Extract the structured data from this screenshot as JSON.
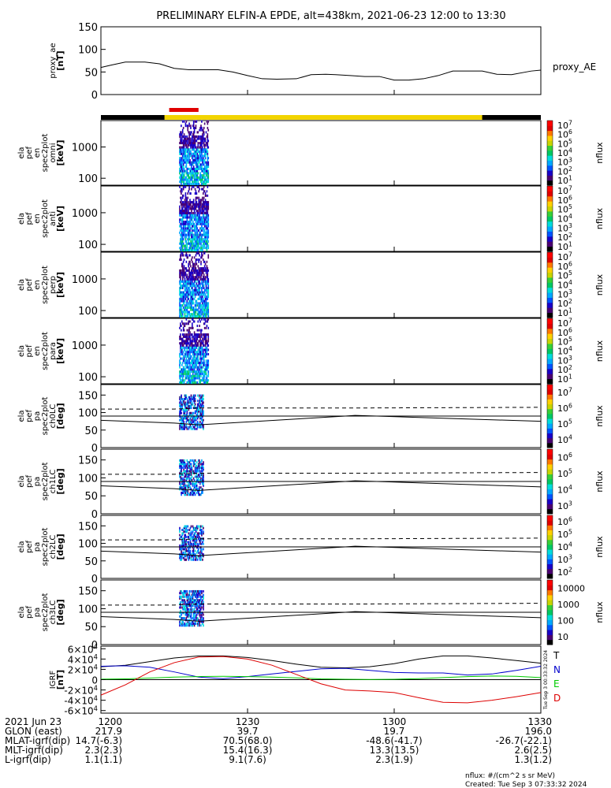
{
  "title": "PRELIMINARY ELFIN-A EPDE, alt=438km, 2021-06-23 12:00 to 13:30",
  "time_range": {
    "start": "12:00",
    "end": "13:30"
  },
  "science_bar": {
    "color": "#e00000",
    "start_min": 13,
    "end_min": 19
  },
  "status_bar": {
    "colors": [
      "#000000",
      "#f2d400"
    ],
    "black_left_end_min": 13,
    "black_right_start_min": 78
  },
  "chart_data": [
    {
      "type": "line",
      "ylabel": "proxy_ae\n[nT]",
      "ylim": [
        0,
        150
      ],
      "yticks": [
        "0",
        "50",
        "100",
        "150"
      ],
      "legend": "proxy_AE",
      "series": [
        {
          "name": "proxy_AE",
          "x_min": [
            0,
            2,
            5,
            9,
            12,
            15,
            18,
            21,
            24,
            27,
            30,
            33,
            36,
            40,
            43,
            46,
            48,
            51,
            54,
            57,
            60,
            63,
            66,
            69,
            72,
            75,
            78,
            81,
            84,
            88,
            90
          ],
          "values": [
            60,
            65,
            72,
            72,
            68,
            58,
            55,
            55,
            55,
            50,
            42,
            35,
            34,
            35,
            44,
            45,
            44,
            42,
            40,
            40,
            32,
            32,
            35,
            42,
            52,
            52,
            52,
            45,
            44,
            52,
            54
          ]
        }
      ]
    },
    {
      "type": "heatmap",
      "ylabel": "ela\npef\nen\nspec2plot\nomni\n[keV]",
      "yscale": "log",
      "ylim": [
        60,
        7000
      ],
      "yticks": [
        "100",
        "1000"
      ],
      "zlabel": "nflux",
      "zticks": [
        "10^1",
        "10^2",
        "10^3",
        "10^4",
        "10^5",
        "10^6",
        "10^7"
      ]
    },
    {
      "type": "heatmap",
      "ylabel": "ela\npef\nen\nspec2plot\nanti\n[keV]",
      "yscale": "log",
      "ylim": [
        60,
        7000
      ],
      "yticks": [
        "100",
        "1000"
      ],
      "zlabel": "nflux",
      "zticks": [
        "10^1",
        "10^2",
        "10^3",
        "10^4",
        "10^5",
        "10^6",
        "10^7"
      ]
    },
    {
      "type": "heatmap",
      "ylabel": "ela\npef\nen\nspec2plot\nperp\n[keV]",
      "yscale": "log",
      "ylim": [
        60,
        7000
      ],
      "yticks": [
        "100",
        "1000"
      ],
      "zlabel": "nflux",
      "zticks": [
        "10^1",
        "10^2",
        "10^3",
        "10^4",
        "10^5",
        "10^6",
        "10^7"
      ]
    },
    {
      "type": "heatmap",
      "ylabel": "ela\npef\nen\nspec2plot\npara\n[keV]",
      "yscale": "log",
      "ylim": [
        60,
        7000
      ],
      "yticks": [
        "100",
        "1000"
      ],
      "zlabel": "nflux",
      "zticks": [
        "10^1",
        "10^2",
        "10^3",
        "10^4",
        "10^5",
        "10^6",
        "10^7"
      ]
    },
    {
      "type": "heatmap",
      "ylabel": "ela\npef\npa\nspec2plot\nch0LC\n[deg]",
      "ylim": [
        0,
        180
      ],
      "yticks": [
        "0",
        "50",
        "100",
        "150"
      ],
      "zlabel": "nflux",
      "zticks": [
        "10^4",
        "10^5",
        "10^6",
        "10^7"
      ],
      "lc_solid": {
        "x_min": [
          0,
          15,
          20,
          50,
          52,
          90
        ],
        "values": [
          78,
          70,
          65,
          90,
          92,
          75
        ]
      },
      "lc_dashed": {
        "x_min": [
          0,
          15,
          20,
          50,
          52,
          90
        ],
        "values": [
          110,
          110,
          113,
          113,
          113,
          115
        ]
      }
    },
    {
      "type": "heatmap",
      "ylabel": "ela\npef\npa\nspec2plot\nch1LC\n[deg]",
      "ylim": [
        0,
        180
      ],
      "yticks": [
        "0",
        "50",
        "100",
        "150"
      ],
      "zlabel": "nflux",
      "zticks": [
        "10^3",
        "10^4",
        "10^5",
        "10^6"
      ],
      "lc_solid": {
        "x_min": [
          0,
          15,
          20,
          50,
          52,
          90
        ],
        "values": [
          78,
          70,
          65,
          90,
          92,
          75
        ]
      },
      "lc_dashed": {
        "x_min": [
          0,
          15,
          20,
          50,
          52,
          90
        ],
        "values": [
          110,
          110,
          113,
          113,
          113,
          115
        ]
      }
    },
    {
      "type": "heatmap",
      "ylabel": "ela\npef\npa\nspec2plot\nch2LC\n[deg]",
      "ylim": [
        0,
        180
      ],
      "yticks": [
        "0",
        "50",
        "100",
        "150"
      ],
      "zlabel": "nflux",
      "zticks": [
        "10^2",
        "10^3",
        "10^4",
        "10^5",
        "10^6"
      ],
      "lc_solid": {
        "x_min": [
          0,
          15,
          20,
          50,
          52,
          90
        ],
        "values": [
          78,
          70,
          65,
          90,
          92,
          75
        ]
      },
      "lc_dashed": {
        "x_min": [
          0,
          15,
          20,
          50,
          52,
          90
        ],
        "values": [
          110,
          110,
          113,
          113,
          113,
          115
        ]
      }
    },
    {
      "type": "heatmap",
      "ylabel": "ela\npef\npa\nspec2plot\nch3LC\n[deg]",
      "ylim": [
        0,
        180
      ],
      "yticks": [
        "0",
        "50",
        "100",
        "150"
      ],
      "zlabel": "nflux",
      "zticks": [
        "10",
        "100",
        "1000",
        "10000"
      ],
      "lc_solid": {
        "x_min": [
          0,
          15,
          20,
          50,
          52,
          90
        ],
        "values": [
          78,
          70,
          65,
          90,
          92,
          75
        ]
      },
      "lc_dashed": {
        "x_min": [
          0,
          15,
          20,
          50,
          52,
          90
        ],
        "values": [
          110,
          110,
          113,
          113,
          113,
          115
        ]
      }
    },
    {
      "type": "line",
      "ylabel": "IGRF\n[nT]",
      "ylim": [
        -65000,
        65000
      ],
      "yticks": [
        "-6×10^4",
        "-4×10^4",
        "-2×10^4",
        "0",
        "2×10^4",
        "4×10^4",
        "6×10^4"
      ],
      "series": [
        {
          "name": "T",
          "color": "#000000",
          "x_min": [
            0,
            5,
            10,
            15,
            20,
            25,
            30,
            35,
            40,
            45,
            50,
            55,
            60,
            65,
            70,
            75,
            80,
            85,
            90
          ],
          "values": [
            25000,
            28000,
            35000,
            42000,
            46000,
            46000,
            43000,
            37000,
            30000,
            24000,
            23000,
            25000,
            31000,
            40000,
            46000,
            46000,
            42000,
            37000,
            32000
          ]
        },
        {
          "name": "N",
          "color": "#0000cc",
          "x_min": [
            0,
            5,
            10,
            15,
            20,
            25,
            30,
            35,
            40,
            45,
            50,
            55,
            60,
            65,
            70,
            75,
            80,
            85,
            90
          ],
          "values": [
            26000,
            27000,
            24000,
            15000,
            5000,
            2000,
            6000,
            11000,
            16000,
            21000,
            22000,
            18000,
            14000,
            13000,
            13000,
            9000,
            11000,
            18000,
            26000
          ]
        },
        {
          "name": "E",
          "color": "#00cc00",
          "x_min": [
            0,
            5,
            10,
            15,
            20,
            25,
            30,
            35,
            40,
            45,
            50,
            55,
            60,
            65,
            70,
            75,
            80,
            85,
            90
          ],
          "values": [
            1000,
            1500,
            3000,
            5000,
            6000,
            6500,
            6000,
            5000,
            3500,
            1500,
            800,
            400,
            800,
            2000,
            4000,
            6000,
            7000,
            6500,
            4000
          ]
        },
        {
          "name": "D",
          "color": "#dd0000",
          "x_min": [
            0,
            5,
            10,
            15,
            20,
            25,
            30,
            35,
            40,
            45,
            50,
            55,
            60,
            65,
            70,
            75,
            80,
            85,
            90
          ],
          "values": [
            -30000,
            -10000,
            15000,
            33000,
            44000,
            45000,
            40000,
            28000,
            10000,
            -8000,
            -20000,
            -22000,
            -25000,
            -35000,
            -44000,
            -45000,
            -40000,
            -33000,
            -25000
          ]
        }
      ]
    }
  ],
  "ticks": [
    {
      "t": "12:00",
      "label": "1200",
      "GLON": "217.9",
      "MLAT": "14.7(-6.3)",
      "MLT": "2.3(2.3)",
      "L": "1.1(1.1)"
    },
    {
      "t": "12:30",
      "label": "1230",
      "GLON": "39.7",
      "MLAT": "70.5(68.0)",
      "MLT": "15.4(16.3)",
      "L": "9.1(7.6)"
    },
    {
      "t": "13:00",
      "label": "1300",
      "GLON": "19.7",
      "MLAT": "-48.6(-41.7)",
      "MLT": "13.3(13.5)",
      "L": "2.3(1.9)"
    },
    {
      "t": "13:30",
      "label": "1330",
      "GLON": "196.0",
      "MLAT": "-26.7(-22.1)",
      "MLT": "2.6(2.5)",
      "L": "1.3(1.2)"
    }
  ],
  "row_labels": {
    "date": "2021 Jun 23",
    "glon": "GLON (east)",
    "mlat": "MLAT-igrf(dip)",
    "mlt": "MLT-igrf(dip)",
    "l": "L-igrf(dip)"
  },
  "footer": {
    "units": "nflux: #/(cm^2 s sr MeV)",
    "created": "Created: Tue Sep  3 07:33:32 2024"
  },
  "side_stamp": "Tue Sep  3 00:33:32 2024",
  "colors": {
    "spec": [
      "#000000",
      "#4b0072",
      "#1a00c8",
      "#0055ff",
      "#00a8ff",
      "#00dcdc",
      "#00c864",
      "#38d038",
      "#c8d400",
      "#ffd000",
      "#ff7800",
      "#e00000",
      "#ff0000"
    ]
  }
}
